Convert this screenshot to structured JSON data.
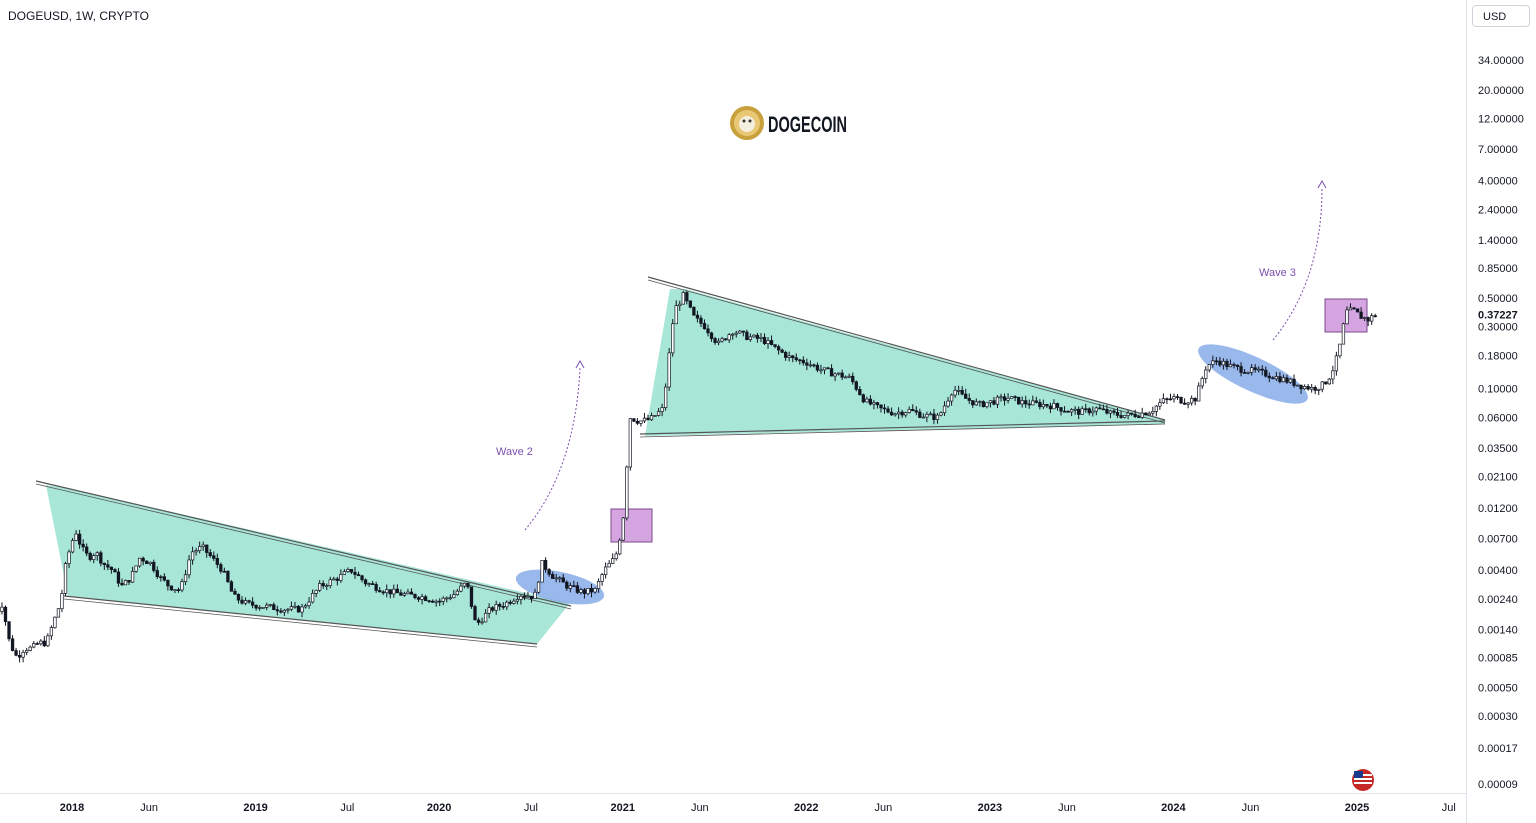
{
  "header": {
    "symbol": "DOGEUSD, 1W, CRYPTO",
    "currency": "USD"
  },
  "logo": {
    "text": "DOGECOIN"
  },
  "chart_data": {
    "type": "candlestick",
    "symbol": "DOGEUSD",
    "interval": "1W",
    "exchange": "CRYPTO",
    "y_scale": "log",
    "current_price": 0.37227,
    "price_ticks": [
      34.0,
      20.0,
      12.0,
      7.0,
      4.0,
      2.4,
      1.4,
      0.85,
      0.5,
      0.3,
      0.18,
      0.1,
      0.06,
      0.035,
      0.021,
      0.012,
      0.007,
      0.004,
      0.0024,
      0.0014,
      0.00085,
      0.0005,
      0.0003,
      0.00017,
      9e-05
    ],
    "price_tick_labels": [
      "34.00000",
      "20.00000",
      "12.00000",
      "7.00000",
      "4.00000",
      "2.40000",
      "1.40000",
      "0.85000",
      "0.50000",
      "0.30000",
      "0.18000",
      "0.10000",
      "0.06000",
      "0.03500",
      "0.02100",
      "0.01200",
      "0.00700",
      "0.00400",
      "0.00240",
      "0.00140",
      "0.00085",
      "0.00050",
      "0.00030",
      "0.00017",
      "0.00009"
    ],
    "price_label": "0.37227",
    "time_ticks": [
      {
        "label": "2018",
        "date": 2018.0,
        "bold": true
      },
      {
        "label": "Jun",
        "date": 2018.42,
        "bold": false
      },
      {
        "label": "2019",
        "date": 2019.0,
        "bold": true
      },
      {
        "label": "Jul",
        "date": 2019.5,
        "bold": false
      },
      {
        "label": "2020",
        "date": 2020.0,
        "bold": true
      },
      {
        "label": "Jul",
        "date": 2020.5,
        "bold": false
      },
      {
        "label": "2021",
        "date": 2021.0,
        "bold": true
      },
      {
        "label": "Jun",
        "date": 2021.42,
        "bold": false
      },
      {
        "label": "2022",
        "date": 2022.0,
        "bold": true
      },
      {
        "label": "Jun",
        "date": 2022.42,
        "bold": false
      },
      {
        "label": "2023",
        "date": 2023.0,
        "bold": true
      },
      {
        "label": "Jun",
        "date": 2023.42,
        "bold": false
      },
      {
        "label": "2024",
        "date": 2024.0,
        "bold": true
      },
      {
        "label": "Jun",
        "date": 2024.42,
        "bold": false
      },
      {
        "label": "2025",
        "date": 2025.0,
        "bold": true
      },
      {
        "label": "Jul",
        "date": 2025.5,
        "bold": false
      }
    ],
    "price_path": [
      [
        2017.58,
        0.0018
      ],
      [
        2017.62,
        0.0022
      ],
      [
        2017.66,
        0.0011
      ],
      [
        2017.7,
        0.00085
      ],
      [
        2017.74,
        0.001
      ],
      [
        2017.78,
        0.001
      ],
      [
        2017.82,
        0.0011
      ],
      [
        2017.86,
        0.0011
      ],
      [
        2017.9,
        0.0016
      ],
      [
        2017.94,
        0.0023
      ],
      [
        2017.96,
        0.004
      ],
      [
        2017.99,
        0.006
      ],
      [
        2018.02,
        0.008
      ],
      [
        2018.05,
        0.006
      ],
      [
        2018.09,
        0.005
      ],
      [
        2018.13,
        0.0055
      ],
      [
        2018.17,
        0.0045
      ],
      [
        2018.22,
        0.004
      ],
      [
        2018.27,
        0.003
      ],
      [
        2018.32,
        0.0035
      ],
      [
        2018.37,
        0.005
      ],
      [
        2018.43,
        0.0045
      ],
      [
        2018.48,
        0.0035
      ],
      [
        2018.53,
        0.003
      ],
      [
        2018.59,
        0.0028
      ],
      [
        2018.65,
        0.0055
      ],
      [
        2018.71,
        0.006
      ],
      [
        2018.76,
        0.005
      ],
      [
        2018.82,
        0.004
      ],
      [
        2018.88,
        0.0025
      ],
      [
        2018.95,
        0.0022
      ],
      [
        2019.05,
        0.0021
      ],
      [
        2019.15,
        0.002
      ],
      [
        2019.25,
        0.002
      ],
      [
        2019.35,
        0.003
      ],
      [
        2019.45,
        0.0035
      ],
      [
        2019.52,
        0.004
      ],
      [
        2019.6,
        0.0032
      ],
      [
        2019.7,
        0.0028
      ],
      [
        2019.8,
        0.0026
      ],
      [
        2019.9,
        0.0025
      ],
      [
        2020.0,
        0.0023
      ],
      [
        2020.08,
        0.0026
      ],
      [
        2020.15,
        0.0032
      ],
      [
        2020.2,
        0.0015
      ],
      [
        2020.28,
        0.002
      ],
      [
        2020.36,
        0.0022
      ],
      [
        2020.44,
        0.0026
      ],
      [
        2020.52,
        0.0025
      ],
      [
        2020.56,
        0.0045
      ],
      [
        2020.62,
        0.0036
      ],
      [
        2020.7,
        0.003
      ],
      [
        2020.78,
        0.0027
      ],
      [
        2020.85,
        0.0028
      ],
      [
        2020.9,
        0.004
      ],
      [
        2020.96,
        0.005
      ],
      [
        2021.0,
        0.009
      ],
      [
        2021.04,
        0.06
      ],
      [
        2021.09,
        0.056
      ],
      [
        2021.15,
        0.058
      ],
      [
        2021.22,
        0.07
      ],
      [
        2021.28,
        0.4
      ],
      [
        2021.33,
        0.52
      ],
      [
        2021.39,
        0.35
      ],
      [
        2021.45,
        0.3
      ],
      [
        2021.52,
        0.22
      ],
      [
        2021.6,
        0.28
      ],
      [
        2021.68,
        0.25
      ],
      [
        2021.76,
        0.24
      ],
      [
        2021.84,
        0.2
      ],
      [
        2021.92,
        0.17
      ],
      [
        2022.0,
        0.16
      ],
      [
        2022.08,
        0.14
      ],
      [
        2022.16,
        0.13
      ],
      [
        2022.24,
        0.12
      ],
      [
        2022.32,
        0.08
      ],
      [
        2022.4,
        0.07
      ],
      [
        2022.48,
        0.065
      ],
      [
        2022.56,
        0.068
      ],
      [
        2022.64,
        0.062
      ],
      [
        2022.72,
        0.06
      ],
      [
        2022.8,
        0.1
      ],
      [
        2022.86,
        0.085
      ],
      [
        2022.94,
        0.075
      ],
      [
        2023.02,
        0.08
      ],
      [
        2023.1,
        0.085
      ],
      [
        2023.18,
        0.078
      ],
      [
        2023.26,
        0.076
      ],
      [
        2023.34,
        0.074
      ],
      [
        2023.42,
        0.068
      ],
      [
        2023.5,
        0.066
      ],
      [
        2023.58,
        0.07
      ],
      [
        2023.66,
        0.064
      ],
      [
        2023.74,
        0.062
      ],
      [
        2023.82,
        0.064
      ],
      [
        2023.88,
        0.068
      ],
      [
        2023.94,
        0.08
      ],
      [
        2024.0,
        0.085
      ],
      [
        2024.06,
        0.08
      ],
      [
        2024.12,
        0.084
      ],
      [
        2024.18,
        0.15
      ],
      [
        2024.24,
        0.165
      ],
      [
        2024.3,
        0.15
      ],
      [
        2024.38,
        0.14
      ],
      [
        2024.46,
        0.135
      ],
      [
        2024.54,
        0.125
      ],
      [
        2024.62,
        0.115
      ],
      [
        2024.7,
        0.105
      ],
      [
        2024.76,
        0.1
      ],
      [
        2024.82,
        0.108
      ],
      [
        2024.86,
        0.13
      ],
      [
        2024.9,
        0.19
      ],
      [
        2024.94,
        0.39
      ],
      [
        2024.98,
        0.4
      ],
      [
        2025.02,
        0.36
      ],
      [
        2025.06,
        0.34
      ],
      [
        2025.1,
        0.37227
      ]
    ]
  },
  "annotations": {
    "wave2_label": "Wave 2",
    "wave3_label": "Wave 3"
  },
  "colors": {
    "up_candle": "#ffffff",
    "down_candle": "#131722",
    "triangle_fill": "#a8e6d8",
    "ellipse_fill": "#87abe8",
    "box_fill": "#d4a5e0",
    "box_stroke": "#7a4a8a",
    "wave_label": "#7b4fb0",
    "logo_coin": "#c8a03c"
  }
}
